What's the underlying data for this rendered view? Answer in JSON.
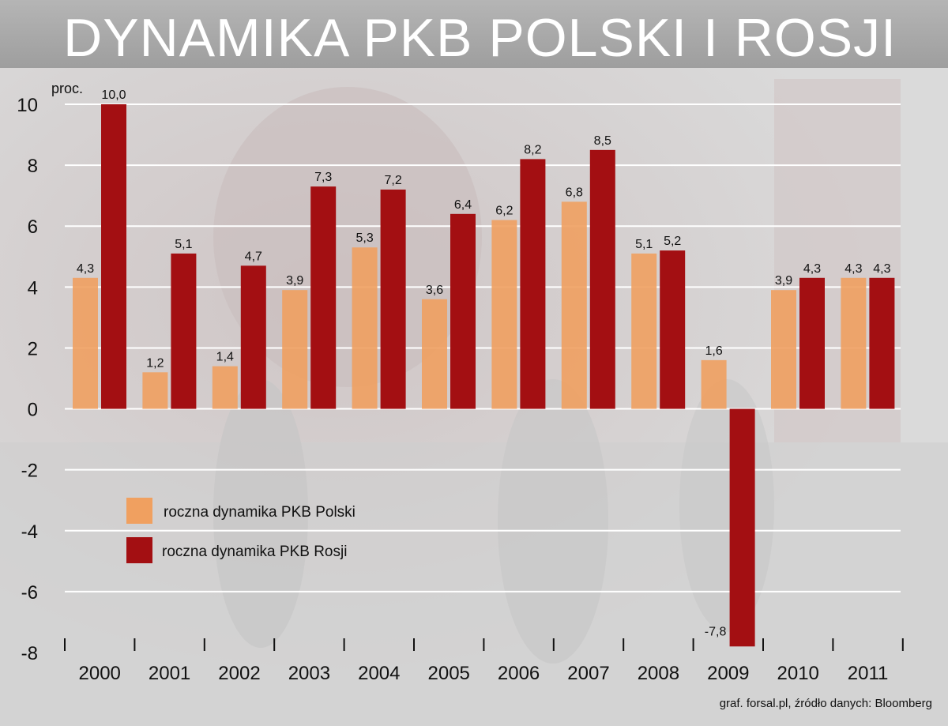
{
  "title": "DYNAMIKA PKB POLSKI I ROSJI",
  "source": "graf. forsal.pl, źródło danych: Bloomberg",
  "colors": {
    "poland": "#f0a060",
    "russia": "#a30f12"
  },
  "chart_data": {
    "type": "bar",
    "title": "DYNAMIKA PKB POLSKI I ROSJI",
    "ylabel": "proc.",
    "xlabel": "",
    "ylim": [
      -8,
      10
    ],
    "yticks": [
      "10",
      "8",
      "6",
      "4",
      "2",
      "0",
      "-2",
      "-4",
      "-6",
      "-8"
    ],
    "grid": true,
    "legend_position": "middle-left",
    "categories": [
      "2000",
      "2001",
      "2002",
      "2003",
      "2004",
      "2005",
      "2006",
      "2007",
      "2008",
      "2009",
      "2010",
      "2011"
    ],
    "series": [
      {
        "name": "roczna dynamika PKB Polski",
        "values": [
          4.3,
          1.2,
          1.4,
          3.9,
          5.3,
          3.6,
          6.2,
          6.8,
          5.1,
          1.6,
          3.9,
          4.3
        ],
        "labels": [
          "4,3",
          "1,2",
          "1,4",
          "3,9",
          "5,3",
          "3,6",
          "6,2",
          "6,8",
          "5,1",
          "1,6",
          "3,9",
          "4,3"
        ]
      },
      {
        "name": "roczna dynamika PKB Rosji",
        "values": [
          10.0,
          5.1,
          4.7,
          7.3,
          7.2,
          6.4,
          8.2,
          8.5,
          5.2,
          -7.8,
          4.3,
          4.3
        ],
        "labels": [
          "10,0",
          "5,1",
          "4,7",
          "7,3",
          "7,2",
          "6,4",
          "8,2",
          "8,5",
          "5,2",
          "-7,8",
          "4,3",
          "4,3"
        ]
      }
    ]
  }
}
